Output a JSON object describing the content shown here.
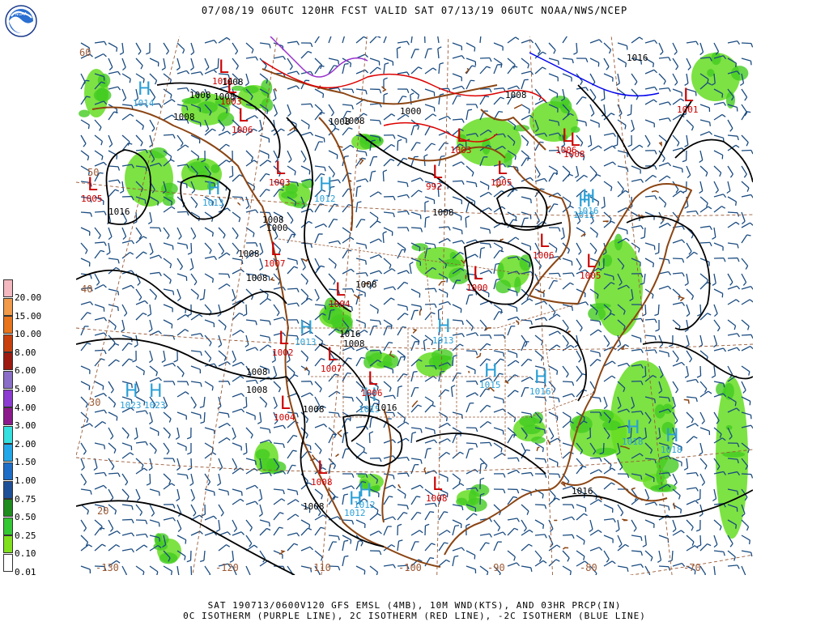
{
  "header": {
    "title": "07/08/19 06UTC  120HR  FCST VALID SAT 07/13/19 06UTC  NOAA/NWS/NCEP"
  },
  "footer": {
    "line1": "SAT 190713/0600V120 GFS EMSL (4MB), 10M WND(KTS), AND 03HR PRCP(IN)",
    "line2": "0C ISOTHERM (PURPLE LINE), 2C ISOTHERM (RED LINE), -2C ISOTHERM (BLUE LINE)"
  },
  "logo": {
    "icon": "noaa-logo-icon",
    "text": "NOAA"
  },
  "legend": {
    "labels": [
      "20.00",
      "15.00",
      "10.00",
      "8.00",
      "6.00",
      "5.00",
      "4.00",
      "3.00",
      "2.00",
      "1.50",
      "1.00",
      "0.75",
      "0.50",
      "0.25",
      "0.10",
      "0.01"
    ],
    "colors": [
      "#f4b8c0",
      "#f09a4a",
      "#e8741c",
      "#c8400e",
      "#9c1a10",
      "#8a6ec8",
      "#8c3cd0",
      "#8c1a8c",
      "#34e0e0",
      "#22a8e8",
      "#1e6ec8",
      "#1e5098",
      "#1e8c1e",
      "#34c834",
      "#80e01e",
      "#ffffff"
    ]
  },
  "map": {
    "colors": {
      "land_border": "#8b4513",
      "political": "#9a5a36",
      "isobar": "#000000",
      "wind": "#1a4b80",
      "high": "#2a9fd6",
      "low": "#cc0000",
      "precip": "#66dd22",
      "isotherm_0c": "#9932cc",
      "isotherm_2c": "#dd0000",
      "isotherm_m2c": "#0000ee"
    },
    "pressure_labels": [
      {
        "text": "1008"
      },
      {
        "text": "1008"
      },
      {
        "text": "1008"
      },
      {
        "text": "1008"
      },
      {
        "text": "1000"
      },
      {
        "text": "1008"
      },
      {
        "text": "1016"
      },
      {
        "text": "1008"
      },
      {
        "text": "1008"
      },
      {
        "text": "1008"
      },
      {
        "text": "1016"
      },
      {
        "text": "1008"
      },
      {
        "text": "1000"
      },
      {
        "text": "1008"
      },
      {
        "text": "1008"
      },
      {
        "text": "1008"
      },
      {
        "text": "1016"
      },
      {
        "text": "1008"
      },
      {
        "text": "1008"
      },
      {
        "text": "1008"
      },
      {
        "text": "1008"
      },
      {
        "text": "1016"
      },
      {
        "text": "1008"
      },
      {
        "text": "1016"
      }
    ],
    "highs": [
      {
        "label": "1014"
      },
      {
        "label": "1013"
      },
      {
        "label": "1012"
      },
      {
        "label": "1013"
      },
      {
        "label": "1023"
      },
      {
        "label": "1023"
      },
      {
        "label": "1013"
      },
      {
        "label": "1015"
      },
      {
        "label": "1016"
      },
      {
        "label": "1015"
      },
      {
        "label": "1018"
      },
      {
        "label": "1018"
      },
      {
        "label": "1012"
      },
      {
        "label": "1012"
      },
      {
        "label": "1016"
      },
      {
        "label": "1012"
      }
    ],
    "lows": [
      {
        "label": "1011"
      },
      {
        "label": "1003"
      },
      {
        "label": "1006"
      },
      {
        "label": "1005"
      },
      {
        "label": "1003"
      },
      {
        "label": "1005"
      },
      {
        "label": "1006"
      },
      {
        "label": "1007"
      },
      {
        "label": "1006"
      },
      {
        "label": "1004"
      },
      {
        "label": "1002"
      },
      {
        "label": "1007"
      },
      {
        "label": "1004"
      },
      {
        "label": "1008"
      },
      {
        "label": "1008"
      },
      {
        "label": "1006"
      },
      {
        "label": "992"
      },
      {
        "label": "1005"
      },
      {
        "label": "1000"
      },
      {
        "label": "1003"
      },
      {
        "label": "1001"
      },
      {
        "label": "1008"
      }
    ],
    "lon_labels": [
      "-130",
      "-120",
      "-110",
      "-100",
      "-90",
      "-80",
      "-70"
    ],
    "lat_labels": [
      "50",
      "40",
      "30",
      "20",
      "60"
    ]
  }
}
